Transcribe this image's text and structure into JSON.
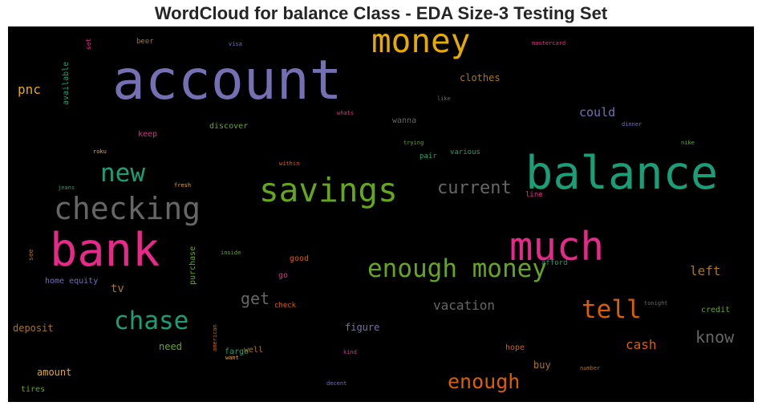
{
  "chart_data": {
    "type": "wordcloud",
    "title": "WordCloud for balance Class - EDA Size-3 Testing Set",
    "colors": {
      "purple": "#7570b3",
      "teal": "#1b9e77",
      "orange": "#d95f02",
      "pink": "#e7298a",
      "green": "#66a61e",
      "gold": "#e6ab02",
      "brown": "#a6761d",
      "gray": "#666666"
    },
    "words": [
      {
        "text": "account",
        "weight": 1.0,
        "color": "purple"
      },
      {
        "text": "balance",
        "weight": 0.84,
        "color": "teal"
      },
      {
        "text": "bank",
        "weight": 0.84,
        "color": "pink"
      },
      {
        "text": "much",
        "weight": 0.72,
        "color": "pink"
      },
      {
        "text": "money",
        "weight": 0.6,
        "color": "gold"
      },
      {
        "text": "savings",
        "weight": 0.6,
        "color": "green"
      },
      {
        "text": "checking",
        "weight": 0.56,
        "color": "gray"
      },
      {
        "text": "new",
        "weight": 0.45,
        "color": "teal"
      },
      {
        "text": "enough money",
        "weight": 0.45,
        "color": "green"
      },
      {
        "text": "chase",
        "weight": 0.45,
        "color": "teal"
      },
      {
        "text": "tell",
        "weight": 0.45,
        "color": "orange"
      },
      {
        "text": "current",
        "weight": 0.33,
        "color": "gray"
      },
      {
        "text": "enough",
        "weight": 0.37,
        "color": "orange"
      },
      {
        "text": "get",
        "weight": 0.3,
        "color": "gray"
      },
      {
        "text": "know",
        "weight": 0.3,
        "color": "gray"
      },
      {
        "text": "vacation",
        "weight": 0.24,
        "color": "gray"
      },
      {
        "text": "left",
        "weight": 0.24,
        "color": "brown"
      },
      {
        "text": "cash",
        "weight": 0.24,
        "color": "orange"
      },
      {
        "text": "pnc",
        "weight": 0.24,
        "color": "gold"
      },
      {
        "text": "could",
        "weight": 0.22,
        "color": "purple"
      },
      {
        "text": "tv",
        "weight": 0.21,
        "color": "brown"
      },
      {
        "text": "clothes",
        "weight": 0.17,
        "color": "brown"
      },
      {
        "text": "deposit",
        "weight": 0.17,
        "color": "brown"
      },
      {
        "text": "figure",
        "weight": 0.17,
        "color": "purple"
      },
      {
        "text": "buy",
        "weight": 0.17,
        "color": "brown"
      },
      {
        "text": "amount",
        "weight": 0.17,
        "color": "gold"
      },
      {
        "text": "need",
        "weight": 0.17,
        "color": "green"
      },
      {
        "text": "wanna",
        "weight": 0.15,
        "color": "gray"
      },
      {
        "text": "discover",
        "weight": 0.15,
        "color": "green"
      },
      {
        "text": "home equity",
        "weight": 0.15,
        "color": "purple"
      },
      {
        "text": "available",
        "weight": 0.14,
        "color": "teal"
      },
      {
        "text": "purchase",
        "weight": 0.14,
        "color": "green"
      },
      {
        "text": "fargo",
        "weight": 0.14,
        "color": "teal"
      },
      {
        "text": "tires",
        "weight": 0.14,
        "color": "green"
      },
      {
        "text": "keep",
        "weight": 0.14,
        "color": "pink"
      },
      {
        "text": "well",
        "weight": 0.14,
        "color": "brown"
      },
      {
        "text": "hope",
        "weight": 0.14,
        "color": "orange"
      },
      {
        "text": "credit",
        "weight": 0.14,
        "color": "green"
      },
      {
        "text": "go",
        "weight": 0.14,
        "color": "pink"
      },
      {
        "text": "good",
        "weight": 0.14,
        "color": "orange"
      },
      {
        "text": "check",
        "weight": 0.13,
        "color": "orange"
      },
      {
        "text": "afford",
        "weight": 0.13,
        "color": "teal"
      },
      {
        "text": "various",
        "weight": 0.13,
        "color": "teal"
      },
      {
        "text": "pair",
        "weight": 0.13,
        "color": "teal"
      },
      {
        "text": "line",
        "weight": 0.13,
        "color": "pink"
      },
      {
        "text": "beer",
        "weight": 0.13,
        "color": "brown"
      },
      {
        "text": "set",
        "weight": 0.12,
        "color": "pink"
      },
      {
        "text": "see",
        "weight": 0.12,
        "color": "brown"
      },
      {
        "text": "kind",
        "weight": 0.11,
        "color": "pink"
      },
      {
        "text": "like",
        "weight": 0.1,
        "color": "gray"
      },
      {
        "text": "visa",
        "weight": 0.1,
        "color": "purple"
      },
      {
        "text": "mastercard",
        "weight": 0.1,
        "color": "pink"
      },
      {
        "text": "whats",
        "weight": 0.1,
        "color": "pink"
      },
      {
        "text": "trying",
        "weight": 0.1,
        "color": "green"
      },
      {
        "text": "dinner",
        "weight": 0.1,
        "color": "purple"
      },
      {
        "text": "nike",
        "weight": 0.1,
        "color": "green"
      },
      {
        "text": "roku",
        "weight": 0.1,
        "color": "gold"
      },
      {
        "text": "within",
        "weight": 0.1,
        "color": "orange"
      },
      {
        "text": "jeans",
        "weight": 0.1,
        "color": "teal"
      },
      {
        "text": "fresh",
        "weight": 0.1,
        "color": "gold"
      },
      {
        "text": "inside",
        "weight": 0.1,
        "color": "green"
      },
      {
        "text": "tonight",
        "weight": 0.1,
        "color": "gray"
      },
      {
        "text": "american",
        "weight": 0.1,
        "color": "orange"
      },
      {
        "text": "want",
        "weight": 0.1,
        "color": "gold"
      },
      {
        "text": "number",
        "weight": 0.1,
        "color": "brown"
      },
      {
        "text": "decent",
        "weight": 0.1,
        "color": "purple"
      }
    ]
  }
}
